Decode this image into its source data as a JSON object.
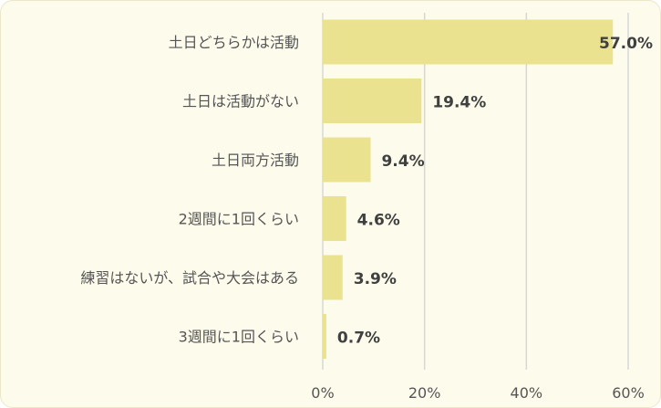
{
  "chart_data": {
    "type": "bar",
    "orientation": "horizontal",
    "categories": [
      "土日どちらかは活動",
      "土日は活動がない",
      "土日両方活動",
      "2週間に1回くらい",
      "練習はないが、試合や大会はある",
      "3週間に1回くらい"
    ],
    "values": [
      57.0,
      19.4,
      9.4,
      4.6,
      3.9,
      0.7
    ],
    "value_labels": [
      "57.0%",
      "19.4%",
      "9.4%",
      "4.6%",
      "3.9%",
      "0.7%"
    ],
    "xlim": [
      0,
      60
    ],
    "xticks": [
      0,
      20,
      40,
      60
    ],
    "xtick_labels": [
      "0%",
      "20%",
      "40%",
      "60%"
    ],
    "grid": true,
    "bar_color": "#ebe28f",
    "background": "#fdfcec"
  }
}
